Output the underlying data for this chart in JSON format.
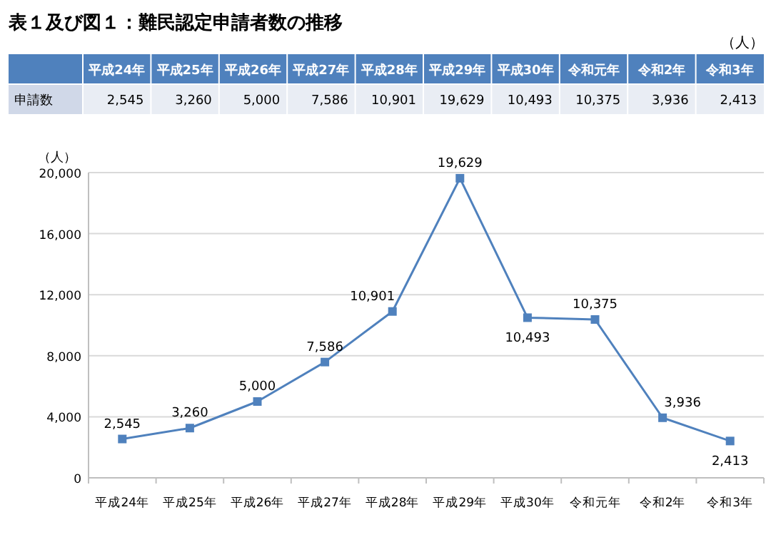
{
  "chart_data": {
    "type": "line",
    "title": "表１及び図１：難民認定申請者数の推移",
    "ylabel": "（人）",
    "annotations": [
      "（人）",
      "申請数"
    ],
    "categories": [
      "平成24年",
      "平成25年",
      "平成26年",
      "平成27年",
      "平成28年",
      "平成29年",
      "平成30年",
      "令和元年",
      "令和2年",
      "令和3年"
    ],
    "values": [
      2545,
      3260,
      5000,
      7586,
      10901,
      19629,
      10493,
      10375,
      3936,
      2413
    ],
    "value_labels": [
      "2,545",
      "3,260",
      "5,000",
      "7,586",
      "10,901",
      "19,629",
      "10,493",
      "10,375",
      "3,936",
      "2,413"
    ],
    "color": "#4f81bd",
    "ylim": [
      0,
      20000
    ],
    "yticks": [
      0,
      {
        "value": 4000,
        "label": "4,000"
      },
      {
        "value": 8000,
        "label": "8,000"
      },
      {
        "value": 12000,
        "label": "12,000"
      },
      {
        "value": 16000,
        "label": "16,000"
      },
      {
        "value": 20000,
        "label": "20,000"
      }
    ],
    "grid": "y",
    "marker": "square"
  }
}
